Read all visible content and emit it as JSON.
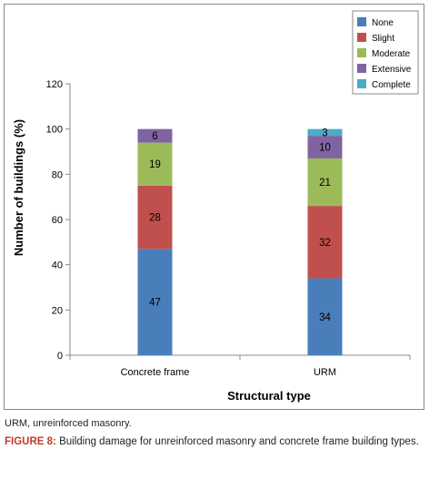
{
  "chart_data": {
    "type": "bar",
    "stacked": true,
    "categories": [
      "Concrete frame",
      "URM"
    ],
    "series": [
      {
        "name": "None",
        "color": "#4a7ebb",
        "values": [
          47,
          34
        ]
      },
      {
        "name": "Slight",
        "color": "#c0504d",
        "values": [
          28,
          32
        ]
      },
      {
        "name": "Moderate",
        "color": "#9bbb59",
        "values": [
          19,
          21
        ]
      },
      {
        "name": "Extensive",
        "color": "#8064a2",
        "values": [
          6,
          10
        ]
      },
      {
        "name": "Complete",
        "color": "#4bacc6",
        "values": [
          0,
          3
        ]
      }
    ],
    "xlabel": "Structural type",
    "ylabel": "Number of buildings (%)",
    "ylim": [
      0,
      120
    ],
    "yticks": [
      0,
      20,
      40,
      60,
      80,
      100,
      120
    ],
    "grid": false,
    "legend_position": "top-right"
  },
  "caption": {
    "abbreviation": "URM, unreinforced masonry.",
    "figure_label": "FIGURE 8:",
    "figure_text": " Building damage for unreinforced masonry and concrete frame building types."
  }
}
